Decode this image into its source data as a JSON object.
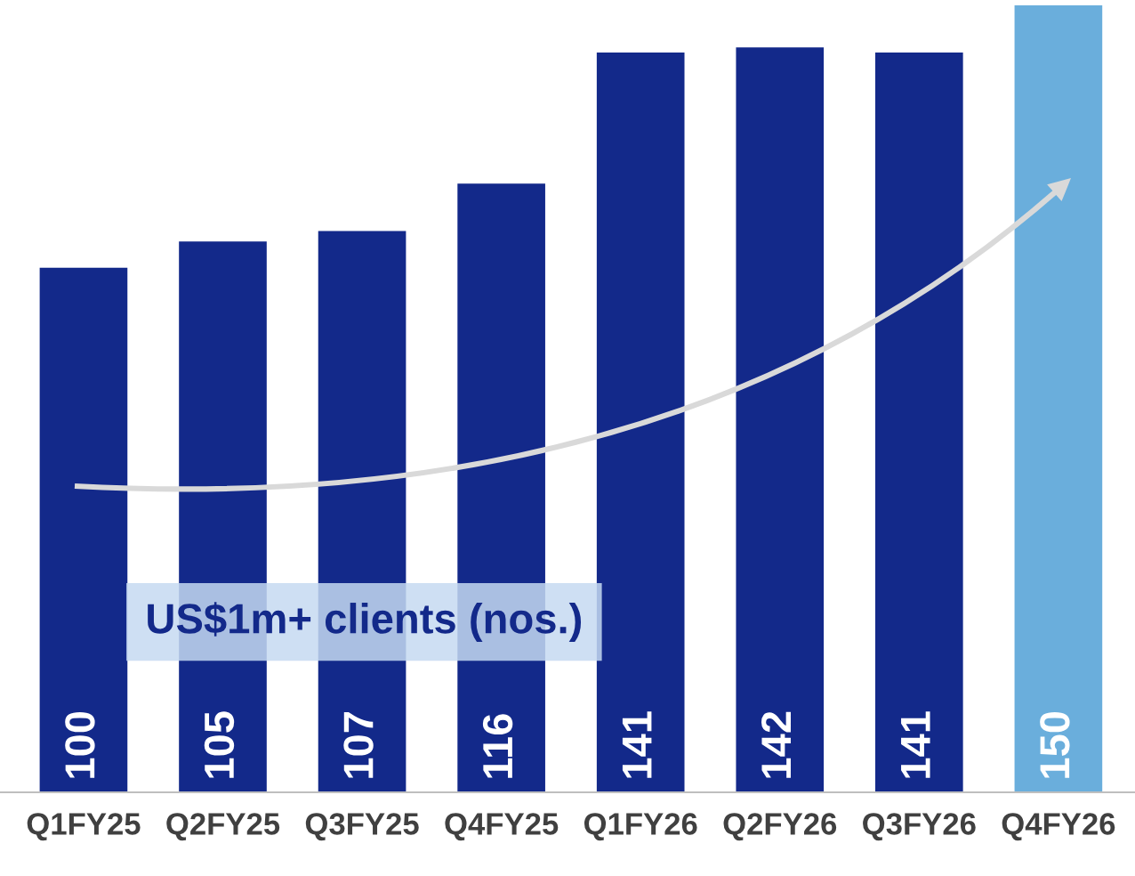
{
  "chart_data": {
    "type": "bar",
    "categories": [
      "Q1FY25",
      "Q2FY25",
      "Q3FY25",
      "Q4FY25",
      "Q1FY26",
      "Q2FY26",
      "Q3FY26",
      "Q4FY26"
    ],
    "values": [
      100,
      105,
      107,
      116,
      141,
      142,
      141,
      150
    ],
    "colors": [
      "#13298a",
      "#13298a",
      "#13298a",
      "#13298a",
      "#13298a",
      "#13298a",
      "#13298a",
      "#6aaedc"
    ],
    "data_labels": true,
    "annotations": [
      "US$1m+ clients (nos.)"
    ],
    "grid": false,
    "legend": false
  }
}
